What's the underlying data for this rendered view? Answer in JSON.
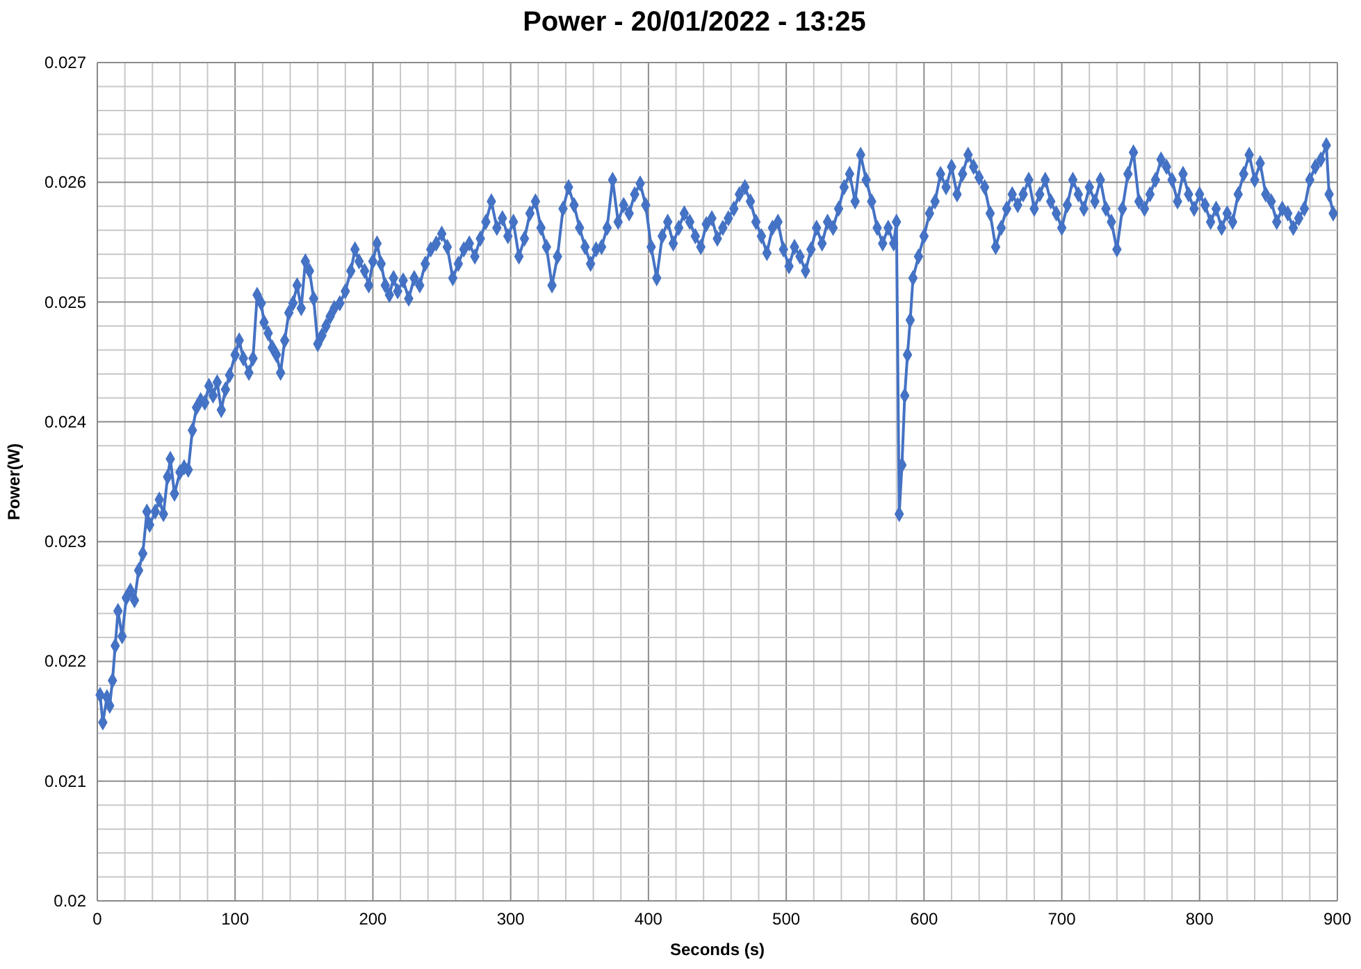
{
  "chart_data": {
    "type": "line",
    "title": "Power - 20/01/2022 - 13:25",
    "xlabel": "Seconds (s)",
    "ylabel": "Power(W)",
    "grid": true,
    "marker": "diamond",
    "line_style": "solid",
    "xlim": [
      0,
      900
    ],
    "ylim": [
      0.02,
      0.027
    ],
    "xticks": [
      0,
      {
        "value": 20,
        "label": null
      },
      {
        "value": 40,
        "label": null
      },
      {
        "value": 60,
        "label": null
      },
      {
        "value": 80,
        "label": null
      },
      100,
      {
        "value": 120,
        "label": null
      },
      {
        "value": 140,
        "label": null
      },
      {
        "value": 160,
        "label": null
      },
      {
        "value": 180,
        "label": null
      },
      200,
      {
        "value": 220,
        "label": null
      },
      {
        "value": 240,
        "label": null
      },
      {
        "value": 260,
        "label": null
      },
      {
        "value": 280,
        "label": null
      },
      300,
      {
        "value": 320,
        "label": null
      },
      {
        "value": 340,
        "label": null
      },
      {
        "value": 360,
        "label": null
      },
      {
        "value": 380,
        "label": null
      },
      400,
      {
        "value": 420,
        "label": null
      },
      {
        "value": 440,
        "label": null
      },
      {
        "value": 460,
        "label": null
      },
      {
        "value": 480,
        "label": null
      },
      500,
      {
        "value": 520,
        "label": null
      },
      {
        "value": 540,
        "label": null
      },
      {
        "value": 560,
        "label": null
      },
      {
        "value": 580,
        "label": null
      },
      600,
      {
        "value": 620,
        "label": null
      },
      {
        "value": 640,
        "label": null
      },
      {
        "value": 660,
        "label": null
      },
      {
        "value": 680,
        "label": null
      },
      700,
      {
        "value": 720,
        "label": null
      },
      {
        "value": 740,
        "label": null
      },
      {
        "value": 760,
        "label": null
      },
      {
        "value": 780,
        "label": null
      },
      800,
      {
        "value": 820,
        "label": null
      },
      {
        "value": 840,
        "label": null
      },
      {
        "value": 860,
        "label": null
      },
      {
        "value": 880,
        "label": null
      },
      900
    ],
    "yticks": [
      0.02,
      {
        "value": 0.0202,
        "label": null
      },
      {
        "value": 0.0204,
        "label": null
      },
      {
        "value": 0.0206,
        "label": null
      },
      {
        "value": 0.0208,
        "label": null
      },
      0.021,
      {
        "value": 0.0212,
        "label": null
      },
      {
        "value": 0.0214,
        "label": null
      },
      {
        "value": 0.0216,
        "label": null
      },
      {
        "value": 0.0218,
        "label": null
      },
      0.022,
      {
        "value": 0.0222,
        "label": null
      },
      {
        "value": 0.0224,
        "label": null
      },
      {
        "value": 0.0226,
        "label": null
      },
      {
        "value": 0.0228,
        "label": null
      },
      0.023,
      {
        "value": 0.0232,
        "label": null
      },
      {
        "value": 0.0234,
        "label": null
      },
      {
        "value": 0.0236,
        "label": null
      },
      {
        "value": 0.0238,
        "label": null
      },
      0.024,
      {
        "value": 0.0242,
        "label": null
      },
      {
        "value": 0.0244,
        "label": null
      },
      {
        "value": 0.0246,
        "label": null
      },
      {
        "value": 0.0248,
        "label": null
      },
      0.025,
      {
        "value": 0.0252,
        "label": null
      },
      {
        "value": 0.0254,
        "label": null
      },
      {
        "value": 0.0256,
        "label": null
      },
      {
        "value": 0.0258,
        "label": null
      },
      0.026,
      {
        "value": 0.0262,
        "label": null
      },
      {
        "value": 0.0264,
        "label": null
      },
      {
        "value": 0.0266,
        "label": null
      },
      {
        "value": 0.0268,
        "label": null
      },
      0.027
    ],
    "x": [
      2,
      4,
      7,
      9,
      11,
      13,
      15,
      18,
      21,
      24,
      27,
      30,
      33,
      36,
      38,
      42,
      45,
      48,
      51,
      53,
      56,
      60,
      63,
      66,
      69,
      72,
      75,
      78,
      81,
      84,
      87,
      90,
      93,
      96,
      100,
      103,
      106,
      110,
      113,
      116,
      119,
      121,
      124,
      127,
      130,
      133,
      136,
      139,
      142,
      145,
      148,
      151,
      154,
      157,
      160,
      163,
      166,
      169,
      172,
      176,
      180,
      184,
      187,
      190,
      194,
      197,
      200,
      203,
      206,
      209,
      212,
      215,
      218,
      222,
      226,
      230,
      234,
      238,
      242,
      246,
      250,
      254,
      258,
      262,
      266,
      270,
      274,
      278,
      282,
      286,
      290,
      294,
      298,
      302,
      306,
      310,
      314,
      318,
      322,
      326,
      330,
      334,
      338,
      342,
      346,
      350,
      354,
      358,
      362,
      366,
      370,
      374,
      378,
      382,
      386,
      390,
      394,
      398,
      402,
      406,
      410,
      414,
      418,
      422,
      426,
      430,
      434,
      438,
      442,
      446,
      450,
      454,
      458,
      462,
      466,
      470,
      474,
      478,
      482,
      486,
      490,
      494,
      498,
      502,
      506,
      510,
      514,
      518,
      522,
      526,
      530,
      534,
      538,
      542,
      546,
      550,
      554,
      558,
      562,
      566,
      570,
      574,
      578,
      580,
      582,
      584,
      586,
      588,
      590,
      592,
      596,
      600,
      604,
      608,
      612,
      616,
      620,
      624,
      628,
      632,
      636,
      640,
      644,
      648,
      652,
      656,
      660,
      664,
      668,
      672,
      676,
      680,
      684,
      688,
      692,
      696,
      700,
      704,
      708,
      712,
      716,
      720,
      724,
      728,
      732,
      736,
      740,
      744,
      748,
      752,
      756,
      760,
      764,
      768,
      772,
      776,
      780,
      784,
      788,
      792,
      796,
      800,
      804,
      808,
      812,
      816,
      820,
      824,
      828,
      832,
      836,
      840,
      844,
      848,
      852,
      856,
      860,
      864,
      868,
      872,
      876,
      880,
      884,
      888,
      892,
      894,
      897
    ],
    "series": [
      {
        "color": "#4472c4",
        "values": [
          0.02172,
          0.02149,
          0.0217,
          0.02163,
          0.02184,
          0.02213,
          0.02242,
          0.02221,
          0.02253,
          0.02259,
          0.02251,
          0.02276,
          0.0229,
          0.02325,
          0.02314,
          0.02325,
          0.02335,
          0.02323,
          0.02354,
          0.02369,
          0.0234,
          0.02358,
          0.02362,
          0.0236,
          0.02393,
          0.02412,
          0.02418,
          0.02416,
          0.0243,
          0.02422,
          0.02433,
          0.0241,
          0.02427,
          0.02439,
          0.02456,
          0.02468,
          0.02453,
          0.02441,
          0.02453,
          0.02506,
          0.02499,
          0.02483,
          0.02474,
          0.02462,
          0.02456,
          0.02441,
          0.02468,
          0.02491,
          0.02499,
          0.02514,
          0.02495,
          0.02534,
          0.02526,
          0.02503,
          0.02465,
          0.02472,
          0.0248,
          0.02488,
          0.02495,
          0.02499,
          0.02509,
          0.02526,
          0.02544,
          0.02534,
          0.02526,
          0.02514,
          0.02534,
          0.02549,
          0.02532,
          0.02514,
          0.02506,
          0.0252,
          0.02509,
          0.02518,
          0.02503,
          0.0252,
          0.02514,
          0.02532,
          0.02544,
          0.02549,
          0.02557,
          0.02546,
          0.0252,
          0.02532,
          0.02544,
          0.02549,
          0.02538,
          0.02553,
          0.02567,
          0.02584,
          0.02562,
          0.0257,
          0.02555,
          0.02567,
          0.02538,
          0.02553,
          0.02574,
          0.02584,
          0.02562,
          0.02546,
          0.02514,
          0.02538,
          0.02578,
          0.02596,
          0.02581,
          0.02562,
          0.02546,
          0.02532,
          0.02544,
          0.02546,
          0.02562,
          0.02602,
          0.02567,
          0.02581,
          0.02574,
          0.0259,
          0.02599,
          0.02581,
          0.02546,
          0.0252,
          0.02555,
          0.02567,
          0.02549,
          0.02562,
          0.02574,
          0.02567,
          0.02555,
          0.02546,
          0.02565,
          0.0257,
          0.02553,
          0.02562,
          0.0257,
          0.02578,
          0.0259,
          0.02596,
          0.02584,
          0.02567,
          0.02555,
          0.02541,
          0.02562,
          0.02567,
          0.02544,
          0.0253,
          0.02546,
          0.02538,
          0.02526,
          0.02544,
          0.02562,
          0.02549,
          0.02567,
          0.02562,
          0.02578,
          0.02596,
          0.02607,
          0.02584,
          0.02623,
          0.02602,
          0.02584,
          0.02562,
          0.02549,
          0.02562,
          0.02549,
          0.02567,
          0.02323,
          0.02364,
          0.02422,
          0.02456,
          0.02485,
          0.0252,
          0.02538,
          0.02555,
          0.02574,
          0.02584,
          0.02607,
          0.02596,
          0.02613,
          0.0259,
          0.02607,
          0.02623,
          0.02613,
          0.02604,
          0.02596,
          0.02574,
          0.02546,
          0.02562,
          0.02578,
          0.0259,
          0.02581,
          0.0259,
          0.02602,
          0.02578,
          0.0259,
          0.02602,
          0.02584,
          0.02574,
          0.02562,
          0.02581,
          0.02602,
          0.0259,
          0.02578,
          0.02596,
          0.02584,
          0.02602,
          0.02578,
          0.02567,
          0.02544,
          0.02578,
          0.02607,
          0.02625,
          0.02584,
          0.02578,
          0.0259,
          0.02602,
          0.02619,
          0.02613,
          0.02602,
          0.02584,
          0.02607,
          0.0259,
          0.02578,
          0.0259,
          0.02581,
          0.02567,
          0.02578,
          0.02562,
          0.02574,
          0.02567,
          0.0259,
          0.02607,
          0.02623,
          0.02602,
          0.02616,
          0.0259,
          0.02584,
          0.02567,
          0.02578,
          0.02574,
          0.02562,
          0.0257,
          0.02578,
          0.02602,
          0.02613,
          0.02619,
          0.02631,
          0.0259,
          0.02574
        ]
      }
    ]
  }
}
